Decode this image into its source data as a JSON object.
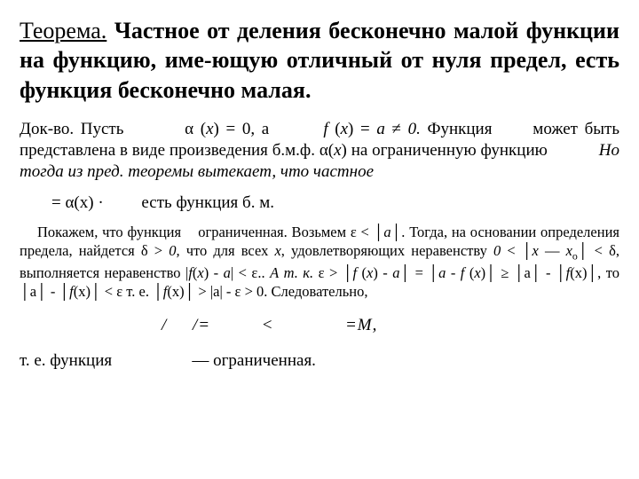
{
  "theorem": {
    "label": "Теорема.",
    "statement": " Частное от деления бесконечно малой функции на функцию, име-ющую отличный от нуля предел, есть функция бесконечно малая."
  },
  "proof": {
    "p1_a": "Док-во. Пусть         α (",
    "p1_b": ") = 0, а        ",
    "p1_c": " (",
    "p1_d": ") = ",
    "p1_e": " ≠ ",
    "p1_f": " Функция      может быть представлена в виде произведения б.м.ф. α(",
    "p1_g": ") на ограниченную функцию            ",
    "p1_h": "Но тогда из пред. теоремы вытекает, что частное",
    "p2": "= α(x) ·         есть функция б. м.",
    "x": "х",
    "f": "f",
    "a": "а",
    "zero": "0."
  },
  "detail": {
    "t1": "Покажем, что функция    ограниченная. Возьмем ε < │",
    "t2": "│. Тогда, на основании определения предела, найдется δ > ",
    "t3": " что для всех ",
    "t4": " удовлетворяющих неравенству ",
    "t5": " < │",
    "t6": " — ",
    "t7": "│ < δ, выполняется неравенство |",
    "t8": "(",
    "t9": ") - ",
    "t10": "| < ε.. ",
    "t11": "А т. к.",
    "t12": " ε > │",
    "t13": " (",
    "t14": "│ = │",
    "t15": " - ",
    "t16": "│ ≥ │a│ - │",
    "t17": "(x)│, то │a│ - │",
    "t18": "(x)│ < ε т. е. │",
    "t19": "(x)│ > |a| - ε > 0. Следовательно,",
    "a": "а",
    "zero_comma": "0,",
    "zero": "0",
    "x": "х",
    "xo": "х",
    "xo_sub": "о",
    "f": "f"
  },
  "formula": "/     /=          <              =M,",
  "conclusion": {
    "t1": "т. е. функция",
    "t2": "— ограниченная."
  },
  "colors": {
    "text": "#000000",
    "background": "#ffffff"
  }
}
